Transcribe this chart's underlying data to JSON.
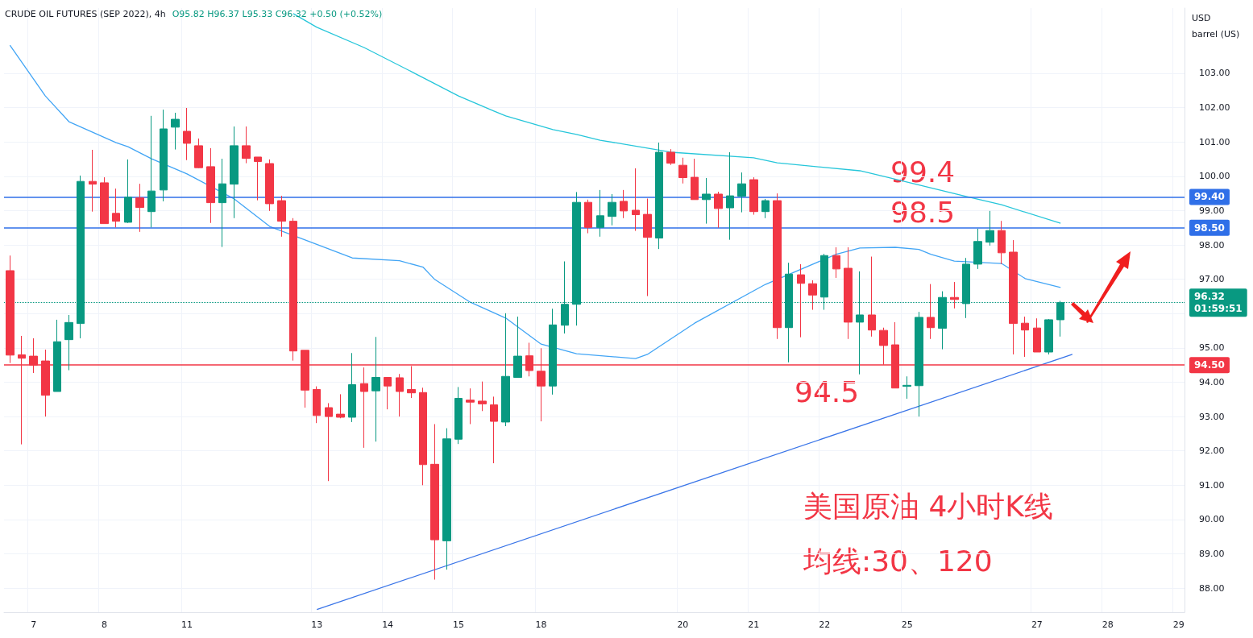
{
  "chart_data": {
    "type": "candlestick",
    "title": "CRUDE OIL FUTURES (SEP 2022), 4h",
    "subtitle": "O95.82 H96.37 L95.33 C96.32 +0.50 (+0.52%)",
    "ylabel": "USD\nbarrel (US)",
    "categories": [
      null,
      null,
      "7",
      null,
      null,
      null,
      null,
      null,
      "8",
      null,
      null,
      null,
      null,
      null,
      null,
      "11",
      null,
      null,
      null,
      null,
      null,
      null,
      null,
      null,
      null,
      null,
      "13",
      null,
      null,
      null,
      null,
      null,
      "14",
      null,
      null,
      null,
      null,
      null,
      "15",
      null,
      null,
      null,
      null,
      null,
      null,
      "18",
      null,
      null,
      null,
      null,
      null,
      null,
      null,
      null,
      null,
      null,
      null,
      "20",
      null,
      null,
      null,
      null,
      null,
      "21",
      null,
      null,
      null,
      null,
      null,
      "22",
      null,
      null,
      null,
      null,
      null,
      null,
      "25",
      null,
      null,
      null,
      null,
      null,
      null,
      null,
      null,
      null,
      null,
      "27",
      null,
      null,
      null,
      null,
      null,
      "28",
      null,
      null,
      null,
      null,
      null,
      "29"
    ],
    "colors": [
      "#f23645",
      "#f23645",
      "#f23645",
      "#f23645",
      "#089981",
      "#089981",
      "#089981",
      "#f23645",
      "#f23645",
      "#f23645",
      "#089981",
      "#f23645",
      "#089981",
      "#089981",
      "#089981",
      "#f23645",
      "#f23645",
      "#f23645",
      "#089981",
      "#089981",
      "#f23645",
      "#f23645",
      "#f23645",
      "#f23645",
      "#f23645",
      "#f23645",
      "#f23645",
      "#f23645",
      "#f23645",
      "#089981",
      "#f23645",
      "#089981",
      "#f23645",
      "#f23645",
      "#f23645",
      "#f23645",
      "#f23645",
      "#089981",
      "#089981",
      "#f23645",
      "#f23645",
      "#f23645",
      "#089981",
      "#089981",
      "#f23645",
      "#f23645",
      "#089981",
      "#089981",
      "#089981",
      "#f23645",
      "#089981",
      "#089981",
      "#f23645",
      "#f23645",
      "#f23645",
      "#089981",
      "#f23645",
      "#f23645",
      "#f23645",
      "#089981",
      "#f23645",
      "#089981",
      "#089981",
      "#f23645",
      "#089981",
      "#f23645",
      "#089981",
      "#f23645",
      "#f23645",
      "#089981",
      "#f23645",
      "#f23645",
      "#089981",
      "#f23645",
      "#f23645",
      "#f23645",
      "#089981",
      "#089981",
      "#f23645",
      "#089981",
      "#f23645",
      "#089981",
      "#089981",
      "#089981",
      "#f23645",
      "#f23645",
      "#f23645",
      "#f23645",
      "#089981",
      "#089981",
      null,
      null,
      null,
      null,
      null,
      null,
      null,
      null,
      null,
      null
    ],
    "ohlc": [
      [
        97.25,
        97.69,
        94.56,
        94.79
      ],
      [
        94.8,
        95.35,
        92.19,
        94.7
      ],
      [
        94.76,
        95.28,
        94.27,
        94.5
      ],
      [
        94.62,
        94.95,
        93.0,
        93.62
      ],
      [
        93.73,
        95.82,
        93.73,
        95.18
      ],
      [
        95.24,
        95.96,
        94.35,
        95.74
      ],
      [
        95.71,
        100.02,
        95.28,
        99.85
      ],
      [
        99.85,
        100.77,
        98.97,
        99.77
      ],
      [
        99.81,
        99.97,
        98.62,
        98.62
      ],
      [
        98.92,
        99.64,
        98.51,
        98.69
      ],
      [
        98.66,
        100.49,
        98.64,
        99.39
      ],
      [
        99.37,
        99.78,
        98.38,
        99.09
      ],
      [
        98.97,
        101.76,
        98.51,
        99.57
      ],
      [
        99.6,
        101.94,
        99.27,
        101.38
      ],
      [
        101.43,
        101.85,
        100.78,
        101.66
      ],
      [
        101.31,
        101.99,
        100.47,
        100.96
      ],
      [
        100.89,
        101.1,
        100.24,
        100.25
      ],
      [
        100.28,
        100.82,
        98.64,
        99.23
      ],
      [
        99.23,
        100.51,
        97.94,
        99.78
      ],
      [
        99.77,
        101.45,
        98.78,
        100.89
      ],
      [
        100.89,
        101.45,
        100.38,
        100.52
      ],
      [
        100.56,
        100.56,
        99.3,
        100.43
      ],
      [
        100.37,
        100.49,
        98.99,
        99.2
      ],
      [
        99.29,
        99.43,
        98.24,
        98.69
      ],
      [
        98.69,
        98.78,
        94.63,
        94.91
      ],
      [
        94.93,
        94.93,
        93.26,
        93.77
      ],
      [
        93.79,
        93.88,
        92.81,
        93.03
      ],
      [
        93.26,
        93.39,
        91.12,
        93.0
      ],
      [
        93.07,
        93.65,
        92.95,
        92.98
      ],
      [
        92.98,
        94.85,
        92.84,
        93.93
      ],
      [
        93.96,
        94.43,
        92.09,
        93.73
      ],
      [
        93.75,
        95.32,
        92.27,
        94.14
      ],
      [
        94.14,
        94.14,
        93.21,
        93.89
      ],
      [
        94.13,
        94.24,
        93.0,
        93.73
      ],
      [
        93.79,
        94.47,
        93.54,
        93.69
      ],
      [
        93.7,
        93.84,
        91.0,
        91.6
      ],
      [
        91.61,
        92.78,
        88.25,
        89.41
      ],
      [
        89.38,
        92.66,
        88.54,
        92.35
      ],
      [
        92.34,
        93.86,
        92.2,
        93.53
      ],
      [
        93.48,
        93.82,
        92.78,
        93.42
      ],
      [
        93.45,
        94.02,
        93.16,
        93.37
      ],
      [
        93.34,
        93.58,
        91.64,
        92.86
      ],
      [
        92.84,
        96.01,
        92.72,
        94.17
      ],
      [
        94.14,
        95.91,
        94.14,
        94.76
      ],
      [
        94.77,
        95.15,
        94.17,
        94.34
      ],
      [
        94.32,
        94.99,
        92.86,
        93.89
      ],
      [
        93.89,
        96.14,
        93.64,
        95.67
      ],
      [
        95.66,
        97.52,
        95.42,
        96.27
      ],
      [
        96.27,
        99.54,
        95.65,
        99.24
      ],
      [
        99.24,
        99.32,
        98.34,
        98.51
      ],
      [
        98.51,
        99.6,
        98.24,
        98.85
      ],
      [
        98.83,
        99.48,
        98.57,
        99.24
      ],
      [
        99.27,
        99.6,
        98.78,
        98.99
      ],
      [
        99.01,
        100.23,
        98.41,
        98.88
      ],
      [
        98.89,
        99.35,
        96.51,
        98.22
      ],
      [
        98.2,
        100.98,
        97.88,
        100.7
      ],
      [
        100.7,
        100.79,
        100.33,
        100.38
      ],
      [
        100.32,
        100.54,
        99.79,
        99.96
      ],
      [
        99.97,
        100.51,
        99.32,
        99.32
      ],
      [
        99.32,
        99.95,
        98.62,
        99.48
      ],
      [
        99.48,
        99.55,
        98.5,
        99.06
      ],
      [
        99.08,
        100.7,
        98.15,
        99.43
      ],
      [
        99.42,
        100.11,
        98.95,
        99.78
      ],
      [
        99.9,
        99.97,
        98.88,
        98.97
      ],
      [
        98.97,
        99.34,
        98.78,
        99.29
      ],
      [
        99.29,
        99.5,
        95.26,
        95.59
      ],
      [
        95.59,
        97.48,
        94.58,
        97.15
      ],
      [
        97.13,
        97.44,
        95.31,
        96.88
      ],
      [
        96.87,
        96.97,
        96.11,
        96.54
      ],
      [
        96.48,
        97.74,
        96.11,
        97.69
      ],
      [
        97.69,
        97.93,
        97.04,
        97.3
      ],
      [
        97.32,
        97.93,
        95.26,
        95.75
      ],
      [
        95.75,
        97.23,
        94.23,
        95.96
      ],
      [
        95.96,
        97.66,
        95.33,
        95.52
      ],
      [
        95.51,
        95.59,
        94.51,
        95.07
      ],
      [
        95.09,
        95.75,
        93.83,
        93.83
      ],
      [
        93.88,
        94.17,
        93.52,
        93.91
      ],
      [
        93.9,
        96.05,
        93.0,
        95.89
      ],
      [
        95.89,
        96.86,
        95.26,
        95.59
      ],
      [
        95.57,
        96.65,
        94.96,
        96.47
      ],
      [
        96.47,
        96.92,
        96.15,
        96.41
      ],
      [
        96.29,
        97.62,
        95.87,
        97.44
      ],
      [
        97.44,
        98.47,
        97.3,
        98.1
      ],
      [
        98.08,
        98.99,
        97.98,
        98.42
      ],
      [
        98.42,
        98.7,
        97.44,
        97.77
      ],
      [
        97.79,
        98.14,
        94.81,
        95.71
      ],
      [
        95.72,
        95.91,
        94.74,
        95.52
      ],
      [
        95.58,
        95.86,
        94.88,
        94.88
      ],
      [
        94.88,
        95.84,
        94.81,
        95.82
      ],
      [
        95.82,
        96.37,
        95.33,
        96.32
      ],
      null,
      null,
      null,
      null,
      null,
      null,
      null,
      null,
      null,
      null
    ],
    "series": [
      {
        "type": "line",
        "color": "#42a5f5",
        "values": [
          103.82,
          null,
          null,
          102.34,
          null,
          101.59,
          null,
          null,
          null,
          100.98,
          100.86,
          null,
          100.51,
          null,
          null,
          100.07,
          null,
          null,
          null,
          99.34,
          null,
          null,
          98.54,
          null,
          null,
          null,
          null,
          null,
          null,
          97.62,
          null,
          null,
          null,
          97.54,
          null,
          97.35,
          96.99,
          null,
          null,
          96.33,
          null,
          null,
          95.87,
          null,
          null,
          95.11,
          null,
          null,
          94.83,
          null,
          null,
          null,
          null,
          94.69,
          94.81,
          null,
          null,
          null,
          95.72,
          null,
          null,
          null,
          null,
          null,
          96.85,
          null,
          null,
          null,
          null,
          null,
          97.73,
          null,
          97.91,
          null,
          null,
          97.93,
          null,
          97.87,
          97.73,
          null,
          97.53,
          null,
          null,
          null,
          97.46,
          null,
          97.02,
          null,
          null,
          96.76,
          null,
          null,
          null,
          null,
          null,
          null,
          null,
          null,
          null,
          null
        ]
      },
      {
        "type": "line",
        "color": "#26c6da",
        "values": [
          null,
          null,
          null,
          null,
          null,
          null,
          null,
          null,
          null,
          null,
          null,
          null,
          null,
          null,
          null,
          null,
          null,
          null,
          null,
          null,
          null,
          null,
          null,
          null,
          104.74,
          null,
          104.34,
          null,
          null,
          null,
          103.75,
          null,
          null,
          null,
          103.05,
          null,
          null,
          null,
          102.34,
          null,
          null,
          101.9,
          101.76,
          null,
          null,
          null,
          101.36,
          null,
          101.22,
          null,
          101.05,
          null,
          null,
          null,
          100.82,
          null,
          100.7,
          null,
          null,
          null,
          null,
          null,
          null,
          100.54,
          null,
          100.39,
          null,
          null,
          null,
          null,
          null,
          null,
          100.16,
          null,
          100.0,
          null,
          null,
          null,
          null,
          null,
          null,
          99.41,
          null,
          null,
          99.17,
          null,
          null,
          null,
          null,
          98.63,
          null,
          null,
          null,
          null,
          null,
          null,
          null,
          null,
          null,
          null
        ]
      },
      {
        "type": "line",
        "color": "#3a75e8",
        "values": [
          null,
          null,
          null,
          null,
          null,
          null,
          null,
          null,
          null,
          null,
          null,
          null,
          null,
          null,
          null,
          null,
          null,
          null,
          null,
          null,
          null,
          null,
          null,
          null,
          null,
          null,
          87.38,
          null,
          null,
          null,
          null,
          null,
          null,
          null,
          null,
          null,
          null,
          null,
          null,
          null,
          null,
          null,
          null,
          null,
          null,
          null,
          null,
          null,
          null,
          null,
          null,
          null,
          null,
          null,
          null,
          null,
          null,
          null,
          null,
          null,
          null,
          null,
          null,
          null,
          null,
          null,
          null,
          null,
          null,
          null,
          null,
          null,
          null,
          null,
          null,
          null,
          null,
          null,
          null,
          null,
          null,
          null,
          null,
          null,
          null,
          null,
          null,
          null,
          null,
          null,
          94.81,
          null,
          null,
          null,
          null,
          null,
          null,
          null,
          null,
          null
        ]
      }
    ],
    "marker": "none",
    "ref_lines": [
      {
        "axis": "y",
        "value": 99.4,
        "label": "99.40",
        "color": "#2f6fe8",
        "line_style": "solid"
      },
      {
        "axis": "y",
        "value": 98.5,
        "label": "98.50",
        "color": "#2f6fe8",
        "line_style": "solid"
      },
      {
        "axis": "y",
        "value": 94.5,
        "label": "94.50",
        "color": "#f23645",
        "line_style": "solid"
      },
      {
        "axis": "y",
        "value": 96.32,
        "label": "96.32\n01:59:51",
        "color": "#089981",
        "line_style": "dotted"
      }
    ],
    "annotations": [
      "99.4",
      "98.5",
      "94.5",
      "美国原油 4小时K线",
      "均线:30、120"
    ],
    "ylim": [
      87.3,
      104.9
    ],
    "yticks": [
      {
        "value": 88,
        "label": "88.00"
      },
      {
        "value": 89,
        "label": "89.00"
      },
      {
        "value": 90,
        "label": "90.00"
      },
      {
        "value": 91,
        "label": "91.00"
      },
      {
        "value": 92,
        "label": "92.00"
      },
      {
        "value": 93,
        "label": "93.00"
      },
      {
        "value": 94,
        "label": "94.00"
      },
      {
        "value": 95,
        "label": "95.00"
      },
      {
        "value": 96,
        "label": null
      },
      {
        "value": 97,
        "label": "97.00"
      },
      {
        "value": 98,
        "label": "98.00"
      },
      {
        "value": 99,
        "label": "99.00"
      },
      {
        "value": 100,
        "label": "100.00"
      },
      {
        "value": 101,
        "label": "101.00"
      },
      {
        "value": 102,
        "label": "102.00"
      },
      {
        "value": 103,
        "label": "103.00"
      }
    ],
    "grid": true
  }
}
